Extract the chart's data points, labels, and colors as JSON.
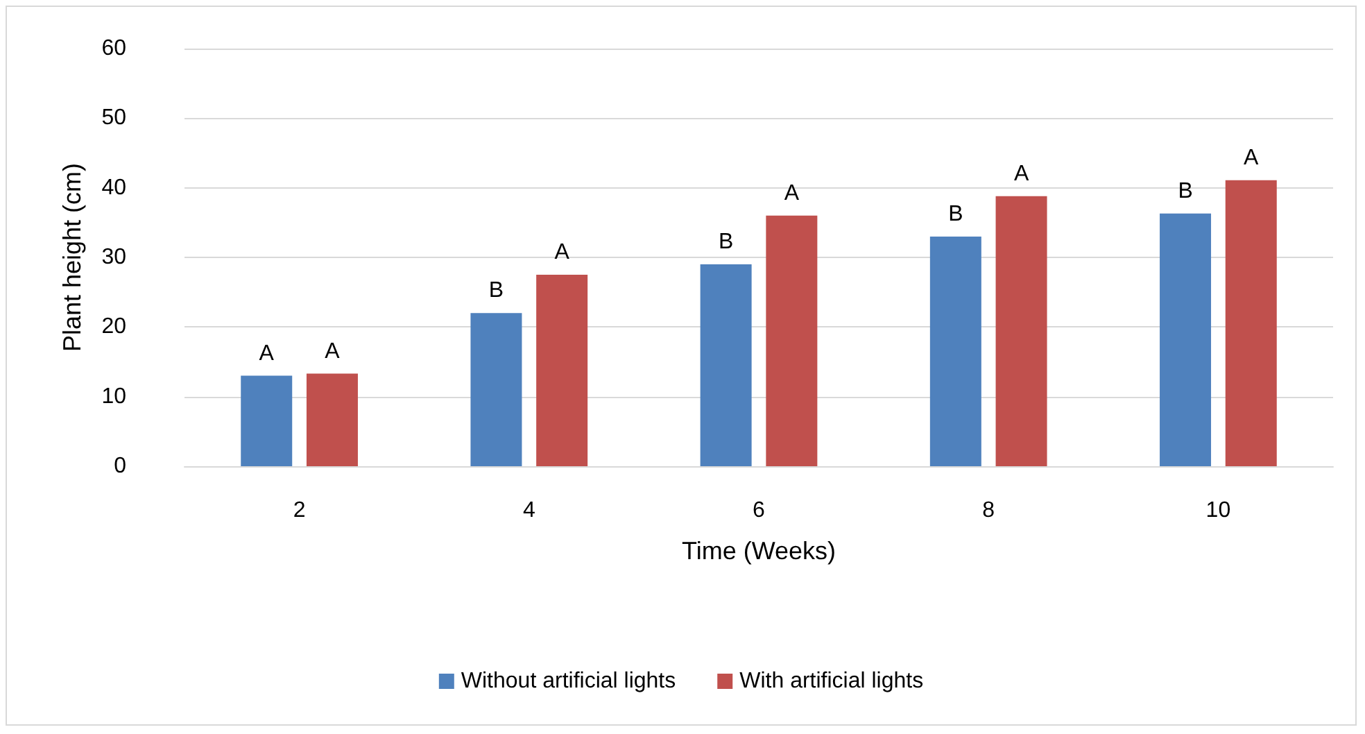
{
  "chart_data": {
    "type": "bar",
    "xlabel": "Time (Weeks)",
    "ylabel": "Plant height (cm)",
    "categories": [
      "2",
      "4",
      "6",
      "8",
      "10"
    ],
    "series": [
      {
        "name": "Without artificial lights",
        "color": "#4f81bd",
        "values": [
          13,
          22,
          29,
          33,
          36.3
        ],
        "value_labels": [
          "A",
          "B",
          "B",
          "B",
          "B"
        ]
      },
      {
        "name": "With artificial lights",
        "color": "#c0504d",
        "values": [
          13.3,
          27.5,
          36,
          38.8,
          41.1
        ],
        "value_labels": [
          "A",
          "A",
          "A",
          "A",
          "A"
        ]
      }
    ],
    "ylim": [
      0,
      60
    ],
    "yticks": [
      0,
      10,
      20,
      30,
      40,
      50,
      60
    ],
    "grid": "y",
    "legend": "bottom"
  }
}
